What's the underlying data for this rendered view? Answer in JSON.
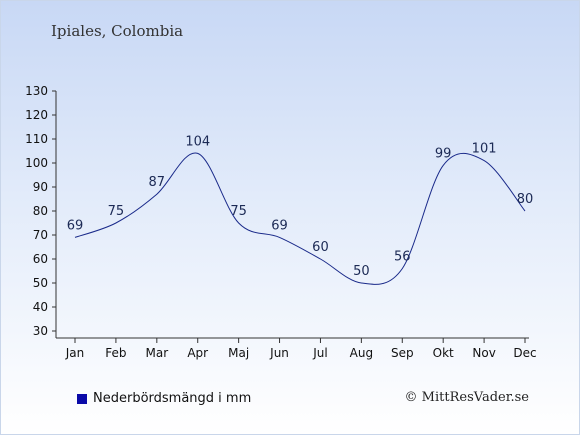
{
  "title": "Ipiales, Colombia",
  "copyright": "© MittResVader.se",
  "legend": {
    "label": "Nederbördsmängd i mm",
    "color": "#0a0aa8"
  },
  "chart_data": {
    "type": "line",
    "categories": [
      "Jan",
      "Feb",
      "Mar",
      "Apr",
      "Maj",
      "Jun",
      "Jul",
      "Aug",
      "Sep",
      "Okt",
      "Nov",
      "Dec"
    ],
    "series": [
      {
        "name": "Nederbördsmängd i mm",
        "values": [
          69,
          75,
          87,
          104,
          75,
          69,
          60,
          50,
          56,
          99,
          101,
          80
        ],
        "color": "#1a2a8a"
      }
    ],
    "ylim": [
      30,
      130
    ],
    "yticks": [
      30,
      40,
      50,
      60,
      70,
      80,
      90,
      100,
      110,
      120,
      130
    ],
    "grid": false,
    "legend_position": "bottom-left"
  }
}
